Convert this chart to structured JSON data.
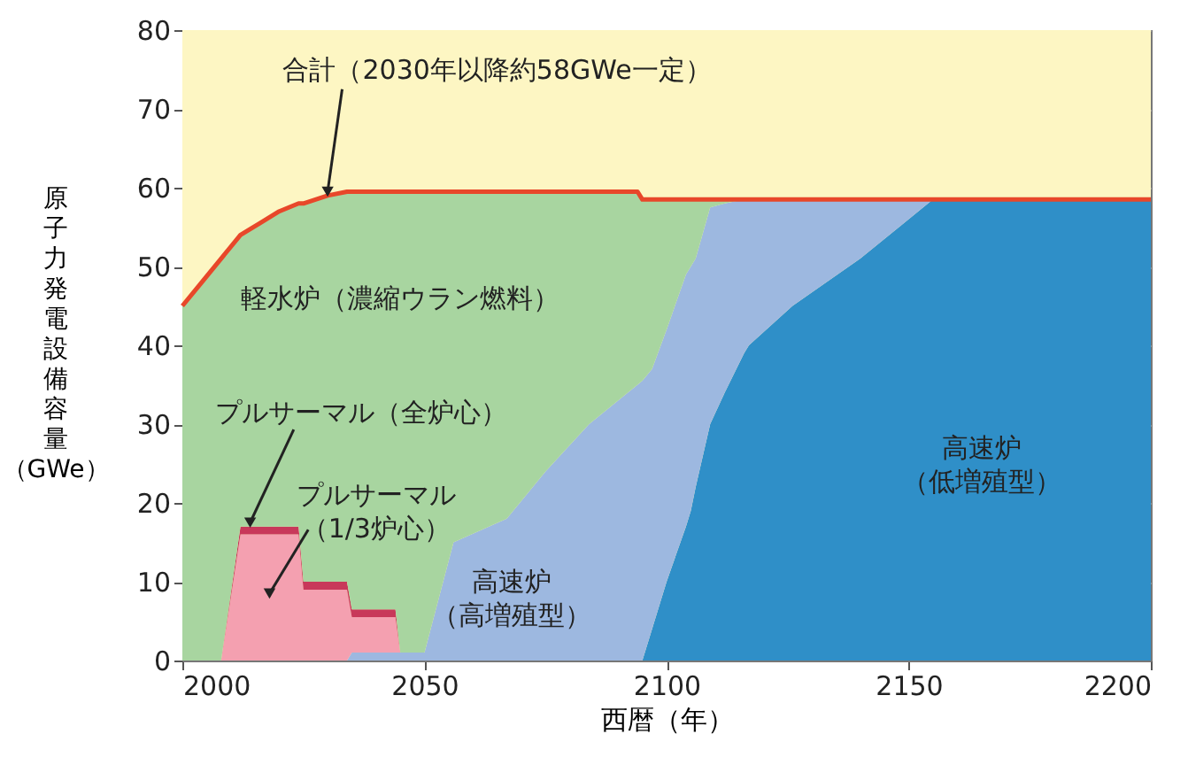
{
  "chart_data": {
    "type": "area",
    "stacked": true,
    "xlabel": "西暦（年）",
    "ylabel": "原子力発電設備容量（GWe）",
    "x": [
      2000,
      2004,
      2008,
      2012,
      2016,
      2020,
      2024,
      2025,
      2030,
      2034,
      2035,
      2040,
      2044,
      2045,
      2050,
      2056,
      2067,
      2075,
      2084,
      2094,
      2095,
      2097,
      2100,
      2104,
      2105,
      2106,
      2109,
      2112,
      2116,
      2117,
      2126,
      2140,
      2155,
      2200
    ],
    "xlim": [
      2000,
      2200
    ],
    "xticks": [
      2000,
      2050,
      2100,
      2150,
      2200
    ],
    "ylim": [
      0,
      80
    ],
    "yticks": [
      0,
      10,
      20,
      30,
      40,
      50,
      60,
      70,
      80
    ],
    "grid": "y",
    "series": [
      {
        "name": "高速炉（低増殖型）",
        "color": "#2f8fc8",
        "values": [
          null,
          null,
          null,
          null,
          null,
          null,
          null,
          null,
          null,
          null,
          null,
          null,
          null,
          null,
          null,
          null,
          null,
          null,
          null,
          null,
          0,
          4,
          10,
          17,
          19,
          22,
          30,
          34,
          39,
          40,
          45,
          51,
          58.5,
          58.5
        ]
      },
      {
        "name": "高速炉（高増殖型）",
        "color": "#9db8e0",
        "values": [
          null,
          null,
          null,
          null,
          null,
          null,
          null,
          null,
          null,
          0,
          1,
          1,
          1,
          1,
          1,
          15,
          18,
          24,
          30,
          35,
          35.5,
          33,
          32,
          32,
          31,
          29,
          27.5,
          24,
          19.5,
          18.5,
          13.5,
          7.5,
          0,
          null
        ]
      },
      {
        "name": "プルサーマル（1/3炉心）",
        "color": "#f4a0b0",
        "values": [
          null,
          null,
          0,
          16,
          16,
          16,
          16,
          9,
          9,
          9,
          4.5,
          4.5,
          4.5,
          0,
          null,
          null,
          null,
          null,
          null,
          null,
          null,
          null,
          null,
          null,
          null,
          null,
          null,
          null,
          null,
          null,
          null,
          null,
          null,
          null
        ]
      },
      {
        "name": "プルサーマル（全炉心）",
        "color": "#c8385a",
        "values": [
          null,
          null,
          0,
          1,
          1,
          1,
          1,
          1,
          1,
          1,
          1,
          1,
          1,
          0,
          null,
          null,
          null,
          null,
          null,
          null,
          null,
          null,
          null,
          null,
          null,
          null,
          null,
          null,
          null,
          null,
          null,
          null,
          null,
          null
        ]
      },
      {
        "name": "軽水炉（濃縮ウラン燃料）",
        "color": "#a8d5a0",
        "values": [
          45,
          48,
          51,
          37,
          38.5,
          40,
          41,
          48,
          49,
          49.5,
          53,
          53,
          53,
          58.5,
          58.5,
          44.5,
          41.5,
          35.5,
          29.5,
          24.5,
          23,
          21.5,
          16.5,
          9.5,
          8.5,
          7.5,
          1,
          0.5,
          0,
          null,
          null,
          null,
          null,
          null
        ]
      },
      {
        "type": "line",
        "color": "#e8472a",
        "values": [
          45,
          48,
          51,
          54,
          55.5,
          57,
          58,
          58,
          59,
          59.5,
          59.5,
          59.5,
          59.5,
          59.5,
          59.5,
          59.5,
          59.5,
          59.5,
          59.5,
          59.5,
          58.5,
          58.5,
          58.5,
          58.5,
          58.5,
          58.5,
          58.5,
          58.5,
          58.5,
          58.5,
          58.5,
          58.5,
          58.5,
          58.5
        ]
      }
    ],
    "bands": [
      {
        "axis": "y",
        "from": 0,
        "to": 80,
        "color": "#fdf6c3"
      }
    ],
    "annotations": [
      {
        "text": "合計（2030年以降約58GWe一定）",
        "x": 2030,
        "y": 59.5
      }
    ]
  }
}
